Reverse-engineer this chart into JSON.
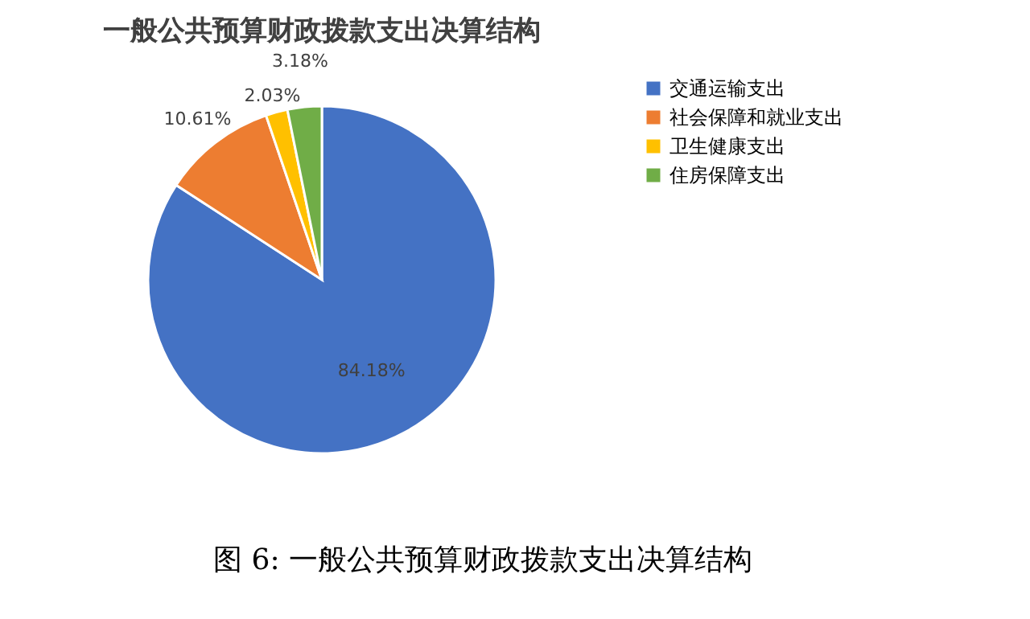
{
  "chart_data": {
    "type": "pie",
    "title": "一般公共预算财政拨款支出决算结构",
    "categories": [
      "交通运输支出",
      "社会保障和就业支出",
      "卫生健康支出",
      "住房保障支出"
    ],
    "values": [
      84.18,
      10.61,
      2.03,
      3.18
    ],
    "colors": [
      "#4472c4",
      "#ed7d31",
      "#ffc000",
      "#70ad47"
    ],
    "value_labels": [
      "84.18%",
      "10.61%",
      "2.03%",
      "3.18%"
    ],
    "legend": "right",
    "annotations": [
      "图 6:  一般公共预算财政拨款支出决算结构"
    ]
  }
}
